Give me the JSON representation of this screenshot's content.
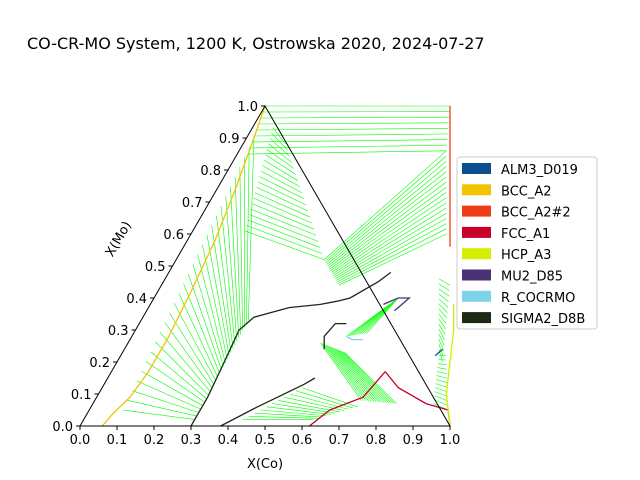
{
  "chart_data": {
    "type": "ternary",
    "title": "CO-CR-MO System, 1200 K, Ostrowska 2020, 2024-07-27",
    "xlabel": "X(Co)",
    "ylabel": "X(Mo)",
    "ticks": [
      0.0,
      0.1,
      0.2,
      0.3,
      0.4,
      0.5,
      0.6,
      0.7,
      0.8,
      0.9,
      1.0
    ],
    "tick_labels": [
      "0.0",
      "0.1",
      "0.2",
      "0.3",
      "0.4",
      "0.5",
      "0.6",
      "0.7",
      "0.8",
      "0.9",
      "1.0"
    ],
    "legend": [
      {
        "name": "ALM3_D019",
        "color": "#0a4f8f"
      },
      {
        "name": "BCC_A2",
        "color": "#f2c300"
      },
      {
        "name": "BCC_A2#2",
        "color": "#f03c16"
      },
      {
        "name": "FCC_A1",
        "color": "#c8002a"
      },
      {
        "name": "HCP_A3",
        "color": "#d5ee00"
      },
      {
        "name": "MU2_D85",
        "color": "#4a3277"
      },
      {
        "name": "R_COCRMO",
        "color": "#7dd3ea"
      },
      {
        "name": "SIGMA2_D8B",
        "color": "#1d2a16"
      }
    ],
    "tie_line_color": "#00ff00",
    "boundaries": [
      {
        "phase": "BCC_A2",
        "color": "#f2c300",
        "points": [
          [
            0.0,
            1.0
          ],
          [
            0.02,
            0.9
          ],
          [
            0.05,
            0.74
          ],
          [
            0.075,
            0.58
          ],
          [
            0.09,
            0.42
          ],
          [
            0.1,
            0.28
          ],
          [
            0.1,
            0.17
          ],
          [
            0.09,
            0.09
          ],
          [
            0.07,
            0.04
          ],
          [
            0.06,
            0.0
          ]
        ]
      },
      {
        "phase": "SIGMA2_D8B",
        "color": "#1d2a16",
        "points": [
          [
            0.3,
            0.0
          ],
          [
            0.3,
            0.09
          ],
          [
            0.29,
            0.2
          ],
          [
            0.28,
            0.3
          ],
          [
            0.3,
            0.34
          ],
          [
            0.38,
            0.37
          ],
          [
            0.46,
            0.38
          ],
          [
            0.5,
            0.39
          ]
        ]
      },
      {
        "phase": "SIGMA2_D8B",
        "color": "#1d2a16",
        "points": [
          [
            0.5,
            0.39
          ],
          [
            0.53,
            0.4
          ],
          [
            0.58,
            0.45
          ],
          [
            0.6,
            0.48
          ]
        ]
      },
      {
        "phase": "SIGMA2_D8B",
        "color": "#1d2a16",
        "points": [
          [
            0.38,
            0.0
          ],
          [
            0.45,
            0.06
          ],
          [
            0.54,
            0.13
          ],
          [
            0.56,
            0.15
          ]
        ]
      },
      {
        "phase": "SIGMA2_D8B",
        "color": "#1d2a16",
        "points": [
          [
            0.54,
            0.24
          ],
          [
            0.52,
            0.28
          ],
          [
            0.53,
            0.32
          ],
          [
            0.56,
            0.32
          ]
        ]
      },
      {
        "phase": "BCC_A2#2",
        "color": "#f03c16",
        "points": [
          [
            0.5,
            1.0
          ],
          [
            0.6,
            0.8
          ],
          [
            0.69,
            0.62
          ],
          [
            0.72,
            0.56
          ]
        ]
      },
      {
        "phase": "FCC_A1",
        "color": "#c8002a",
        "points": [
          [
            0.74,
            0.17
          ],
          [
            0.8,
            0.12
          ],
          [
            0.9,
            0.07
          ],
          [
            0.97,
            0.05
          ],
          [
            1.0,
            0.0
          ]
        ]
      },
      {
        "phase": "FCC_A1",
        "color": "#c8002a",
        "points": [
          [
            0.62,
            0.0
          ],
          [
            0.65,
            0.05
          ],
          [
            0.72,
            0.09
          ],
          [
            0.74,
            0.17
          ]
        ]
      },
      {
        "phase": "HCP_A3",
        "color": "#d5ee00",
        "points": [
          [
            0.82,
            0.38
          ],
          [
            0.86,
            0.3
          ],
          [
            0.9,
            0.2
          ],
          [
            0.94,
            0.1
          ],
          [
            1.0,
            0.0
          ]
        ]
      },
      {
        "phase": "MU2_D85",
        "color": "#4a3277",
        "points": [
          [
            0.63,
            0.38
          ],
          [
            0.66,
            0.4
          ],
          [
            0.69,
            0.4
          ],
          [
            0.67,
            0.36
          ]
        ]
      },
      {
        "phase": "R_COCRMO",
        "color": "#7dd3ea",
        "points": [
          [
            0.58,
            0.28
          ],
          [
            0.6,
            0.27
          ],
          [
            0.63,
            0.27
          ]
        ]
      },
      {
        "phase": "ALM3_D019",
        "color": "#0a4f8f",
        "points": [
          [
            0.85,
            0.22
          ],
          [
            0.86,
            0.24
          ]
        ]
      }
    ]
  }
}
